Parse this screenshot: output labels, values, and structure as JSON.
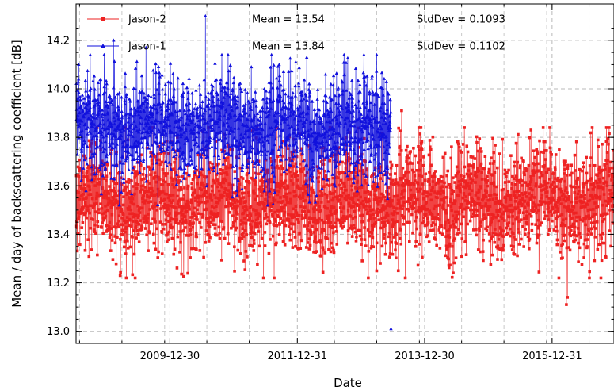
{
  "chart_data": {
    "type": "line",
    "xlabel": "Date",
    "ylabel": "Mean / day of backscattering coefficient [dB]",
    "xlim": [
      "2008-07-10",
      "2016-12-20"
    ],
    "ylim": [
      12.95,
      14.35
    ],
    "x_ticks": [
      "2009-12-30",
      "2011-12-31",
      "2013-12-30",
      "2015-12-31"
    ],
    "y_ticks": [
      13.0,
      13.2,
      13.4,
      13.6,
      13.8,
      14.0,
      14.2
    ],
    "grid": true,
    "legend_position": "top-left",
    "series": [
      {
        "name": "Jason-2",
        "color": "#ee2222",
        "marker": "square",
        "mean_label": "Mean = 13.54",
        "std_label": "StdDev = 0.1093",
        "start": "2008-07-12",
        "end": "2016-12-20",
        "mean": 13.54,
        "stddev": 0.1093,
        "highlights": [
          {
            "x": "2013-08-20",
            "y": 13.91
          },
          {
            "x": "2013-08-01",
            "y": 13.25
          },
          {
            "x": "2013-09-10",
            "y": 13.22
          },
          {
            "x": "2009-03-20",
            "y": 13.23
          },
          {
            "x": "2016-03-22",
            "y": 13.11
          },
          {
            "x": "2016-03-28",
            "y": 13.14
          },
          {
            "x": "2015-09-01",
            "y": 13.83
          },
          {
            "x": "2014-08-15",
            "y": 13.84
          }
        ]
      },
      {
        "name": "Jason-1",
        "color": "#1111dd",
        "marker": "triangle",
        "mean_label": "Mean = 13.84",
        "std_label": "StdDev = 0.1102",
        "start": "2008-07-12",
        "end": "2013-06-20",
        "mean": 13.84,
        "stddev": 0.1102,
        "highlights": [
          {
            "x": "2010-07-22",
            "y": 14.3
          },
          {
            "x": "2013-06-20",
            "y": 13.01
          },
          {
            "x": "2009-08-15",
            "y": 14.17
          },
          {
            "x": "2009-02-10",
            "y": 14.2
          },
          {
            "x": "2008-07-25",
            "y": 14.1
          }
        ]
      }
    ]
  }
}
